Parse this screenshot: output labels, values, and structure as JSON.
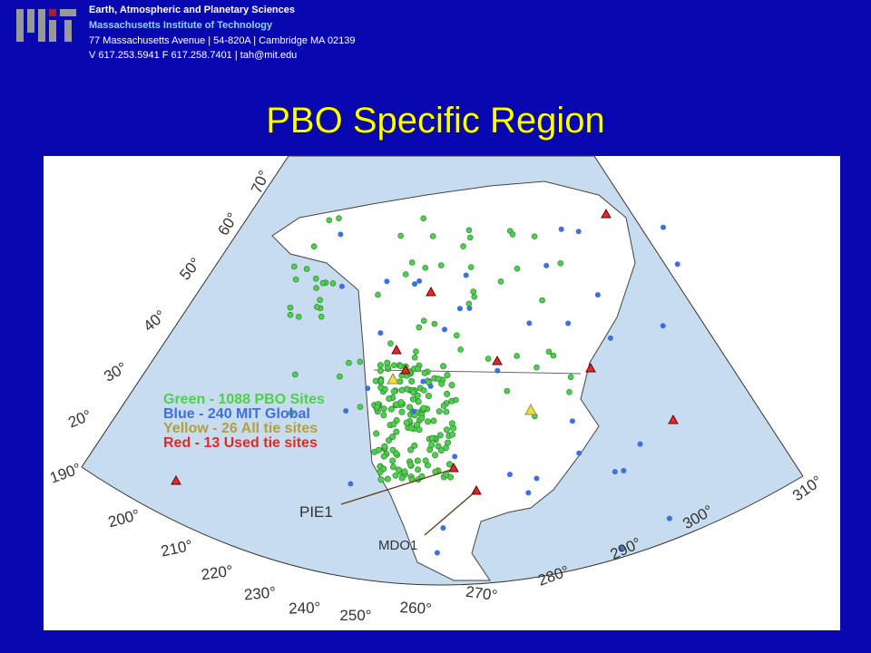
{
  "header": {
    "department": "Earth, Atmospheric and Planetary Sciences",
    "institute": "Massachusetts Institute of Technology",
    "address": "77 Massachusetts Avenue | 54-820A | Cambridge MA 02139",
    "contact": "V 617.253.5941 F 617.258.7401 | tah@mit.edu"
  },
  "title": "PBO Specific Region",
  "map": {
    "legend": [
      {
        "text": "Green - 1088 PBO Sites",
        "color": "#4fcf4f"
      },
      {
        "text": "Blue - 240 MIT Global",
        "color": "#3d6fe0"
      },
      {
        "text": "Yellow - 26 All tie sites",
        "color": "#b0a040"
      },
      {
        "text": "Red - 13 Used tie sites",
        "color": "#e02a2a"
      }
    ],
    "latitude_labels": [
      "70°",
      "60°",
      "50°",
      "40°",
      "30°",
      "20°"
    ],
    "longitude_labels": [
      "190°",
      "200°",
      "210°",
      "220°",
      "230°",
      "240°",
      "250°",
      "260°",
      "270°",
      "280°",
      "290°",
      "300°",
      "310°"
    ],
    "annotations": [
      "PIE1",
      "MDO1"
    ]
  }
}
